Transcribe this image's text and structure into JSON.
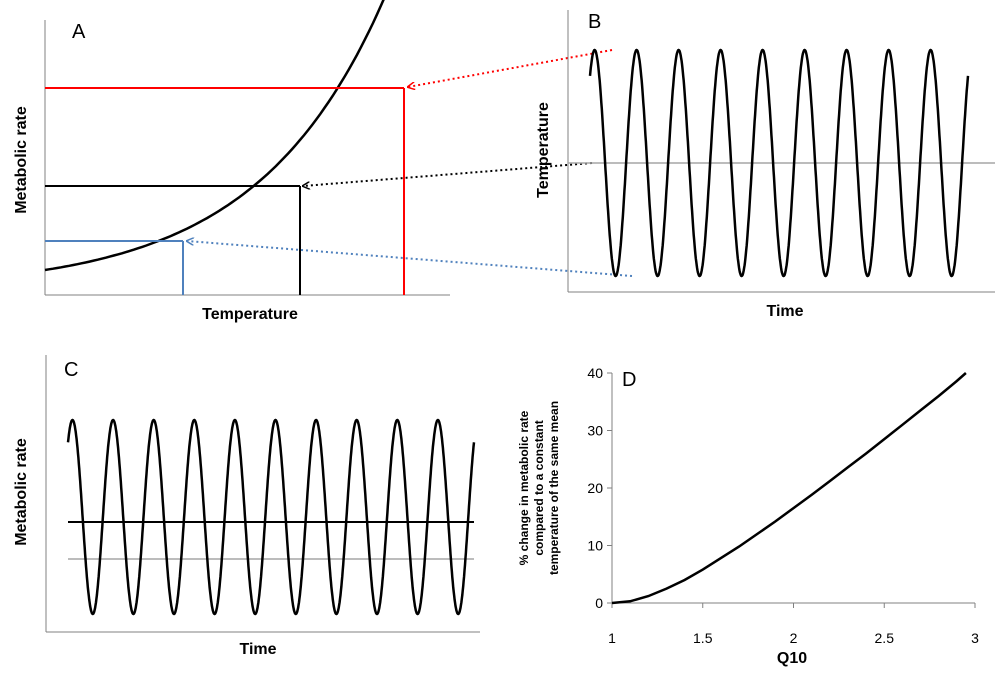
{
  "chart_data": [
    {
      "panel": "A",
      "type": "line",
      "xlabel": "Temperature",
      "ylabel": "Metabolic rate",
      "colors": {
        "curve": "#000000",
        "high": "#ff0000",
        "mean": "#000000",
        "low": "#4f81bd"
      }
    },
    {
      "panel": "B",
      "type": "line",
      "xlabel": "Time",
      "ylabel": "Temperature",
      "cycles": 9,
      "colors": {
        "wave": "#000000",
        "mean": "#a6a6a6"
      }
    },
    {
      "panel": "C",
      "type": "line",
      "xlabel": "Time",
      "ylabel": "Metabolic rate",
      "cycles": 10,
      "colors": {
        "wave": "#000000",
        "mean_rate": "#000000",
        "rate_at_mean": "#a6a6a6"
      }
    },
    {
      "panel": "D",
      "type": "line",
      "xlabel": "Q10",
      "ylabel_lines": [
        "% change in metabolic rate",
        "compared to a constant",
        "temperature of the same mean"
      ],
      "xlim": [
        1,
        3
      ],
      "ylim": [
        0,
        40
      ],
      "xticks": [
        "1",
        "1.5",
        "2",
        "2.5",
        "3"
      ],
      "yticks": [
        "0",
        "10",
        "20",
        "30",
        "40"
      ],
      "series": [
        {
          "x": [
            1.0,
            1.1,
            1.2,
            1.3,
            1.4,
            1.5,
            1.6,
            1.7,
            1.8,
            1.9,
            2.0,
            2.1,
            2.2,
            2.3,
            2.4,
            2.5,
            2.6,
            2.7,
            2.8,
            2.9,
            2.95
          ],
          "y": [
            0,
            0.3,
            1.2,
            2.5,
            4.0,
            5.8,
            7.8,
            9.8,
            12.0,
            14.2,
            16.5,
            18.8,
            21.2,
            23.6,
            26.0,
            28.5,
            31.0,
            33.5,
            36.0,
            38.6,
            40.0
          ]
        }
      ]
    }
  ]
}
